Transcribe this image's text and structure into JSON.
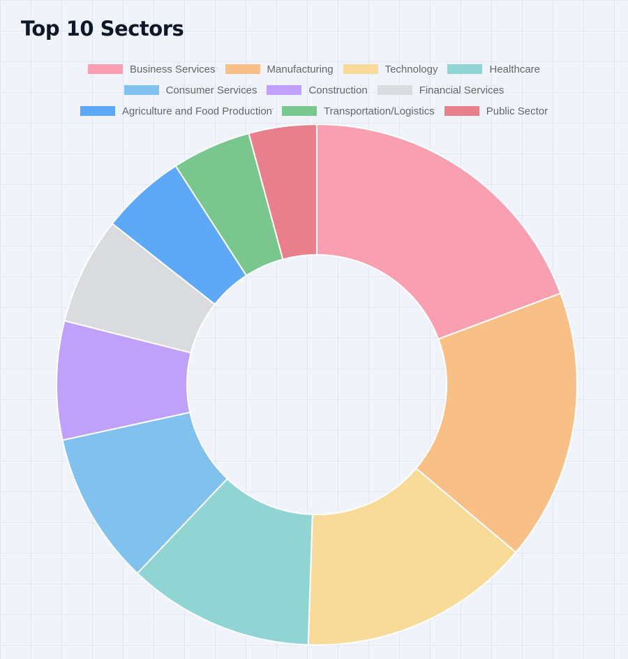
{
  "page": {
    "title": "Top 10 Sectors"
  },
  "chart_data": {
    "type": "donut",
    "title": "Top 10 Sectors",
    "legend_position": "top",
    "categories": [
      "Business Services",
      "Manufacturing",
      "Technology",
      "Healthcare",
      "Consumer Services",
      "Construction",
      "Financial Services",
      "Agriculture and Food Production",
      "Transportation/Logistics",
      "Public Sector"
    ],
    "values": [
      55,
      48,
      41,
      33,
      27,
      21,
      19,
      15,
      14,
      12
    ],
    "colors": [
      "#f99fb2",
      "#f8c087",
      "#f8db99",
      "#90d5d4",
      "#80c1ee",
      "#bfa1fb",
      "#dadbde",
      "#5da9f8",
      "#79c68e",
      "#e77f8d"
    ]
  }
}
